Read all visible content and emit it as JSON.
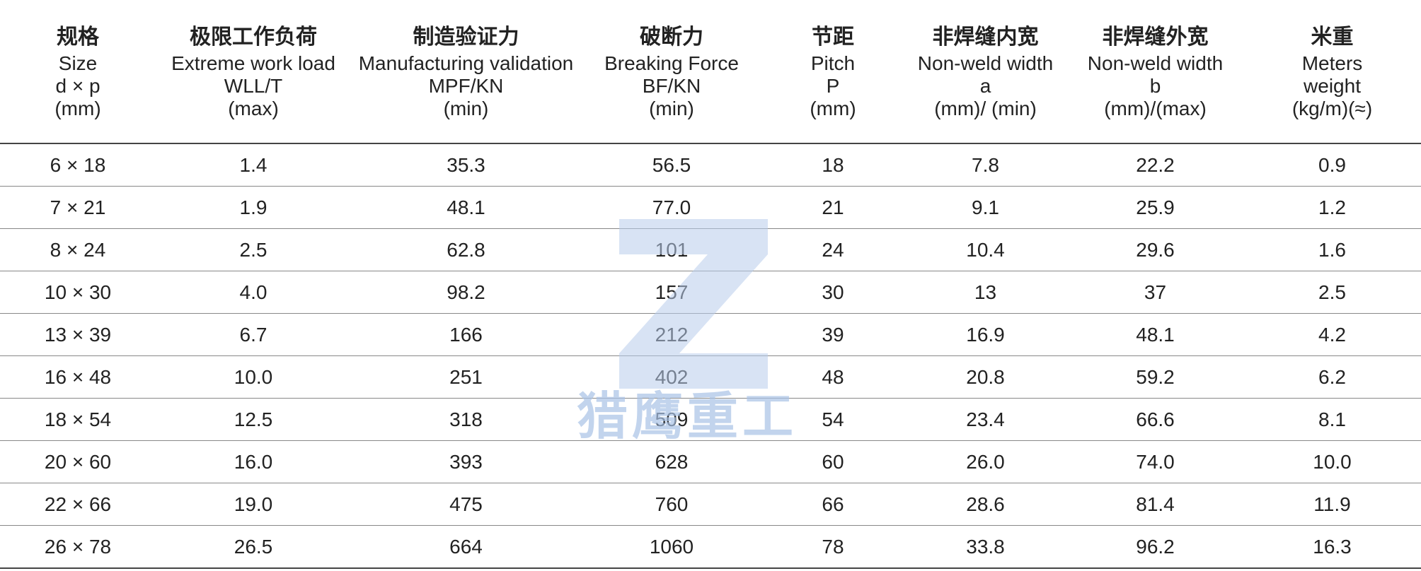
{
  "header": [
    {
      "lines": [
        "规格",
        "Size",
        "d × p",
        "(mm)"
      ]
    },
    {
      "lines": [
        "极限工作负荷",
        "Extreme work load",
        "WLL/T",
        "(max)"
      ]
    },
    {
      "lines": [
        "制造验证力",
        "Manufacturing validation",
        "MPF/KN",
        "(min)"
      ]
    },
    {
      "lines": [
        "破断力",
        "Breaking Force",
        "BF/KN",
        "(min)"
      ]
    },
    {
      "lines": [
        "节距",
        "Pitch",
        "P",
        "(mm)"
      ]
    },
    {
      "lines": [
        "非焊缝内宽",
        "Non-weld width",
        "a",
        "(mm)/ (min)"
      ]
    },
    {
      "lines": [
        "非焊缝外宽",
        "Non-weld width",
        "b",
        "(mm)/(max)"
      ]
    },
    {
      "lines": [
        "米重",
        "Meters",
        "weight",
        "(kg/m)(≈)"
      ]
    }
  ],
  "table": {
    "rows": [
      [
        "6 × 18",
        "1.4",
        "35.3",
        "56.5",
        "18",
        "7.8",
        "22.2",
        "0.9"
      ],
      [
        "7 × 21",
        "1.9",
        "48.1",
        "77.0",
        "21",
        "9.1",
        "25.9",
        "1.2"
      ],
      [
        "8 × 24",
        "2.5",
        "62.8",
        "101",
        "24",
        "10.4",
        "29.6",
        "1.6"
      ],
      [
        "10 × 30",
        "4.0",
        "98.2",
        "157",
        "30",
        "13",
        "37",
        "2.5"
      ],
      [
        "13 × 39",
        "6.7",
        "166",
        "212",
        "39",
        "16.9",
        "48.1",
        "4.2"
      ],
      [
        "16 × 48",
        "10.0",
        "251",
        "402",
        "48",
        "20.8",
        "59.2",
        "6.2"
      ],
      [
        "18 × 54",
        "12.5",
        "318",
        "509",
        "54",
        "23.4",
        "66.6",
        "8.1"
      ],
      [
        "20 × 60",
        "16.0",
        "393",
        "628",
        "60",
        "26.0",
        "74.0",
        "10.0"
      ],
      [
        "22 × 66",
        "19.0",
        "475",
        "760",
        "66",
        "28.6",
        "81.4",
        "11.9"
      ],
      [
        "26 × 78",
        "26.5",
        "664",
        "1060",
        "78",
        "33.8",
        "96.2",
        "16.3"
      ]
    ]
  },
  "watermark": {
    "text": "猎鹰重工"
  }
}
